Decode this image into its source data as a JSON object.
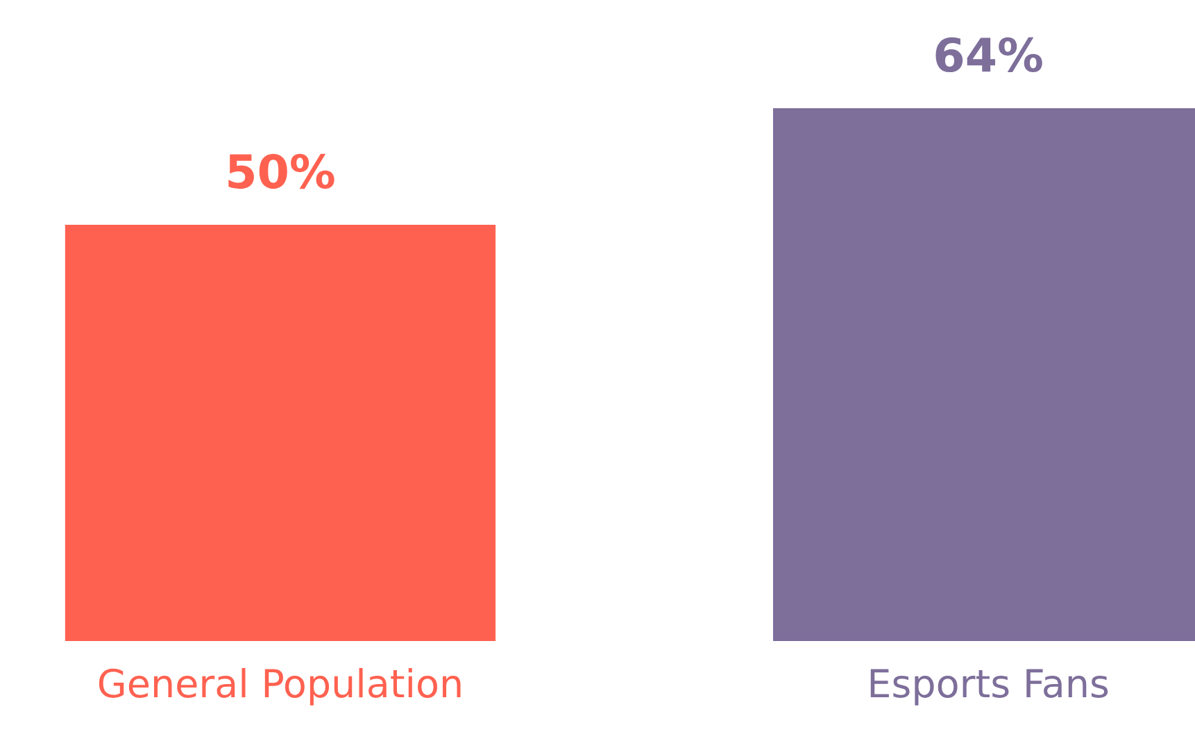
{
  "chart_data": {
    "type": "bar",
    "categories": [
      "General Population",
      "Esports Fans"
    ],
    "values": [
      50,
      64
    ],
    "colors": [
      "#ff6150",
      "#7d6e9a"
    ],
    "value_labels": [
      "50%",
      "64%"
    ],
    "grid": false,
    "legend": false
  }
}
